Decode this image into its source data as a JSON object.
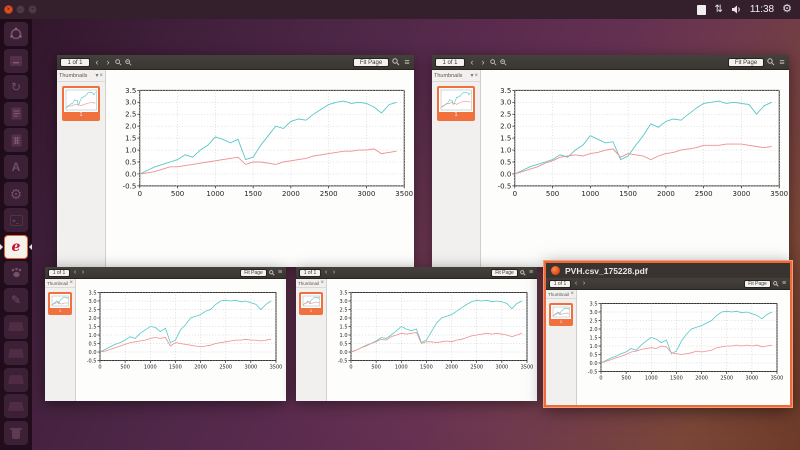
{
  "topbar": {
    "time": "11:38",
    "right_icons": [
      "notes-indicator-icon",
      "network-updown-icon",
      "volume-icon",
      "session-gear-icon"
    ],
    "window_controls": [
      "close",
      "minimize",
      "maximize"
    ]
  },
  "launcher": {
    "items": [
      {
        "icon": "ubuntu-dash-icon"
      },
      {
        "icon": "files-icon"
      },
      {
        "icon": "swirl-app-icon"
      },
      {
        "icon": "writer-document-icon"
      },
      {
        "icon": "spreadsheet-document-icon"
      },
      {
        "icon": "software-store-icon"
      },
      {
        "icon": "settings-gear-icon"
      },
      {
        "icon": "terminal-icon"
      },
      {
        "icon": "evince-icon",
        "active": true
      },
      {
        "icon": "paw-app-icon"
      },
      {
        "icon": "text-editor-pencil-icon"
      },
      {
        "icon": "drive-icon"
      },
      {
        "icon": "drive-icon"
      },
      {
        "icon": "drive-icon"
      },
      {
        "icon": "drive-icon"
      },
      {
        "icon": "trash-icon"
      }
    ]
  },
  "windows": [
    {
      "position": "top-left",
      "toolbar": {
        "page_indicator": "1 of 1",
        "zoom_level": "Fit Page"
      },
      "sidebar": {
        "header": "Thumbnails",
        "selected_page_number": "1"
      }
    },
    {
      "position": "top-right",
      "toolbar": {
        "page_indicator": "1 of 1",
        "zoom_level": "Fit Page"
      },
      "sidebar": {
        "header": "Thumbnails",
        "selected_page_number": "1"
      }
    },
    {
      "position": "bottom-left",
      "toolbar": {
        "page_indicator": "1 of 1",
        "zoom_level": "Fit Page"
      },
      "sidebar": {
        "header": "Thumbnails",
        "selected_page_number": "1"
      }
    },
    {
      "position": "bottom-middle",
      "toolbar": {
        "page_indicator": "1 of 1",
        "zoom_level": "Fit Page"
      },
      "sidebar": {
        "header": "Thumbnails",
        "selected_page_number": "1"
      }
    },
    {
      "position": "bottom-right",
      "title": "PVH.csv_175228.pdf",
      "selected": true,
      "toolbar": {
        "page_indicator": "1 of 1",
        "zoom_level": "Fit Page"
      },
      "sidebar": {
        "header": "Thumbnails",
        "selected_page_number": "1"
      }
    }
  ],
  "chart_data": [
    {
      "window": "top-left",
      "type": "line",
      "title": "",
      "xlabel": "",
      "ylabel": "",
      "xlim": [
        0,
        3500
      ],
      "ylim": [
        -0.5,
        3.5
      ],
      "xticks": [
        0,
        500,
        1000,
        1500,
        2000,
        2500,
        3000,
        3500
      ],
      "yticks": [
        -0.5,
        0.0,
        0.5,
        1.0,
        1.5,
        2.0,
        2.5,
        3.0,
        3.5
      ],
      "grid": "dotted",
      "legend": null,
      "x_start": 0,
      "x_step": 100,
      "series": [
        {
          "name": "cyan",
          "color": "#57c8c8",
          "values": [
            0.0,
            0.15,
            0.3,
            0.4,
            0.5,
            0.6,
            0.8,
            0.7,
            1.0,
            1.2,
            1.55,
            1.45,
            1.3,
            1.45,
            0.6,
            0.7,
            1.2,
            1.6,
            2.0,
            1.9,
            2.2,
            2.3,
            2.25,
            2.5,
            2.7,
            2.9,
            3.0,
            3.05,
            2.95,
            3.0,
            2.95,
            2.8,
            2.55,
            2.9,
            3.0
          ]
        },
        {
          "name": "red",
          "color": "#ef8f8f",
          "values": [
            0.0,
            0.05,
            0.1,
            0.2,
            0.3,
            0.3,
            0.35,
            0.4,
            0.45,
            0.5,
            0.55,
            0.6,
            0.65,
            0.7,
            0.4,
            0.5,
            0.5,
            0.45,
            0.4,
            0.5,
            0.55,
            0.6,
            0.65,
            0.75,
            0.8,
            0.85,
            0.9,
            0.95,
            0.95,
            1.0,
            1.0,
            1.05,
            0.85,
            0.9,
            0.95
          ]
        }
      ]
    },
    {
      "window": "top-right",
      "type": "line",
      "title": "",
      "xlabel": "",
      "ylabel": "",
      "xlim": [
        0,
        3500
      ],
      "ylim": [
        -0.5,
        3.5
      ],
      "xticks": [
        0,
        500,
        1000,
        1500,
        2000,
        2500,
        3000,
        3500
      ],
      "yticks": [
        -0.5,
        0.0,
        0.5,
        1.0,
        1.5,
        2.0,
        2.5,
        3.0,
        3.5
      ],
      "grid": "dotted",
      "legend": null,
      "x_start": 0,
      "x_step": 100,
      "series": [
        {
          "name": "cyan",
          "color": "#57c8c8",
          "values": [
            0.0,
            0.15,
            0.3,
            0.4,
            0.5,
            0.6,
            0.8,
            0.7,
            1.0,
            1.2,
            1.6,
            1.45,
            1.3,
            1.35,
            0.6,
            0.75,
            1.2,
            1.6,
            2.1,
            1.95,
            2.2,
            2.3,
            2.25,
            2.5,
            2.75,
            2.95,
            3.0,
            3.05,
            2.95,
            3.0,
            2.95,
            2.9,
            2.5,
            2.85,
            3.0
          ]
        },
        {
          "name": "red",
          "color": "#ef8f8f",
          "values": [
            0.0,
            0.1,
            0.2,
            0.3,
            0.45,
            0.55,
            0.7,
            0.75,
            0.8,
            0.75,
            0.85,
            0.9,
            1.0,
            1.05,
            0.7,
            0.85,
            0.8,
            0.75,
            0.6,
            0.75,
            0.85,
            0.9,
            1.0,
            1.05,
            1.1,
            1.2,
            1.2,
            1.2,
            1.25,
            1.25,
            1.25,
            1.2,
            1.15,
            1.1,
            1.15
          ]
        }
      ]
    },
    {
      "window": "bottom-left",
      "type": "line",
      "title": "",
      "xlabel": "",
      "ylabel": "",
      "xlim": [
        0,
        3500
      ],
      "ylim": [
        -0.5,
        3.5
      ],
      "xticks": [
        0,
        500,
        1000,
        1500,
        2000,
        2500,
        3000,
        3500
      ],
      "yticks": [
        -0.5,
        0.0,
        0.5,
        1.0,
        1.5,
        2.0,
        2.5,
        3.0,
        3.5
      ],
      "grid": "dotted",
      "legend": null,
      "x_start": 0,
      "x_step": 100,
      "series": [
        {
          "name": "cyan",
          "color": "#57c8c8",
          "values": [
            0.0,
            0.15,
            0.3,
            0.45,
            0.55,
            0.7,
            0.9,
            0.8,
            1.1,
            1.3,
            1.5,
            1.45,
            1.2,
            1.4,
            0.55,
            0.7,
            1.3,
            1.6,
            2.0,
            2.1,
            2.2,
            2.4,
            2.5,
            2.8,
            3.0,
            3.05,
            3.0,
            3.05,
            2.95,
            3.0,
            2.9,
            2.8,
            2.5,
            2.8,
            3.0
          ]
        },
        {
          "name": "red",
          "color": "#ef8f8f",
          "values": [
            0.0,
            0.05,
            0.15,
            0.25,
            0.35,
            0.45,
            0.55,
            0.6,
            0.65,
            0.7,
            0.8,
            0.85,
            0.8,
            0.85,
            0.35,
            0.55,
            0.5,
            0.45,
            0.4,
            0.35,
            0.3,
            0.35,
            0.4,
            0.5,
            0.55,
            0.6,
            0.65,
            0.7,
            0.7,
            0.75,
            0.7,
            0.7,
            0.65,
            0.7,
            0.75
          ]
        }
      ]
    },
    {
      "window": "bottom-middle",
      "type": "line",
      "title": "",
      "xlabel": "",
      "ylabel": "",
      "xlim": [
        0,
        3500
      ],
      "ylim": [
        -0.5,
        3.5
      ],
      "xticks": [
        0,
        500,
        1000,
        1500,
        2000,
        2500,
        3000,
        3500
      ],
      "yticks": [
        -0.5,
        0.0,
        0.5,
        1.0,
        1.5,
        2.0,
        2.5,
        3.0,
        3.5
      ],
      "grid": "dotted",
      "legend": null,
      "x_start": 0,
      "x_step": 100,
      "series": [
        {
          "name": "cyan",
          "color": "#57c8c8",
          "values": [
            0.0,
            0.1,
            0.25,
            0.4,
            0.5,
            0.65,
            0.85,
            0.8,
            1.0,
            1.25,
            1.5,
            1.35,
            1.25,
            1.35,
            0.55,
            0.7,
            1.2,
            1.7,
            2.0,
            2.1,
            2.2,
            2.4,
            2.6,
            2.8,
            2.95,
            3.05,
            3.0,
            3.05,
            2.95,
            3.0,
            2.95,
            2.85,
            2.55,
            2.85,
            3.0
          ]
        },
        {
          "name": "red",
          "color": "#ef8f8f",
          "values": [
            0.0,
            0.1,
            0.25,
            0.35,
            0.5,
            0.6,
            0.75,
            0.7,
            0.9,
            1.0,
            1.1,
            1.05,
            1.1,
            1.15,
            0.5,
            0.6,
            0.6,
            0.55,
            0.6,
            0.65,
            0.6,
            0.7,
            0.75,
            0.85,
            0.95,
            1.0,
            1.05,
            1.1,
            1.05,
            1.1,
            1.05,
            1.0,
            0.9,
            1.0,
            1.1
          ]
        }
      ]
    },
    {
      "window": "bottom-right",
      "type": "line",
      "title": "",
      "xlabel": "",
      "ylabel": "",
      "xlim": [
        0,
        3500
      ],
      "ylim": [
        -0.5,
        3.5
      ],
      "xticks": [
        0,
        500,
        1000,
        1500,
        2000,
        2500,
        3000,
        3500
      ],
      "yticks": [
        -0.5,
        0.0,
        0.5,
        1.0,
        1.5,
        2.0,
        2.5,
        3.0,
        3.5
      ],
      "grid": "dotted",
      "legend": null,
      "x_start": 0,
      "x_step": 100,
      "series": [
        {
          "name": "cyan",
          "color": "#57c8c8",
          "values": [
            0.0,
            0.15,
            0.3,
            0.4,
            0.55,
            0.65,
            0.85,
            0.75,
            1.05,
            1.3,
            1.5,
            1.4,
            1.2,
            1.35,
            0.55,
            0.7,
            1.3,
            1.7,
            2.0,
            2.1,
            2.2,
            2.35,
            2.5,
            2.8,
            3.0,
            3.05,
            3.0,
            3.05,
            2.95,
            3.0,
            2.9,
            2.8,
            2.6,
            2.85,
            3.0
          ]
        },
        {
          "name": "red",
          "color": "#ef8f8f",
          "values": [
            0.0,
            0.1,
            0.2,
            0.3,
            0.4,
            0.5,
            0.65,
            0.7,
            0.8,
            0.85,
            0.9,
            0.85,
            1.0,
            0.95,
            0.6,
            0.55,
            0.5,
            0.55,
            0.6,
            0.7,
            0.65,
            0.7,
            0.75,
            0.9,
            0.95,
            1.0,
            1.0,
            1.05,
            1.0,
            1.05,
            1.0,
            1.05,
            0.95,
            1.0,
            1.05
          ]
        }
      ]
    }
  ]
}
